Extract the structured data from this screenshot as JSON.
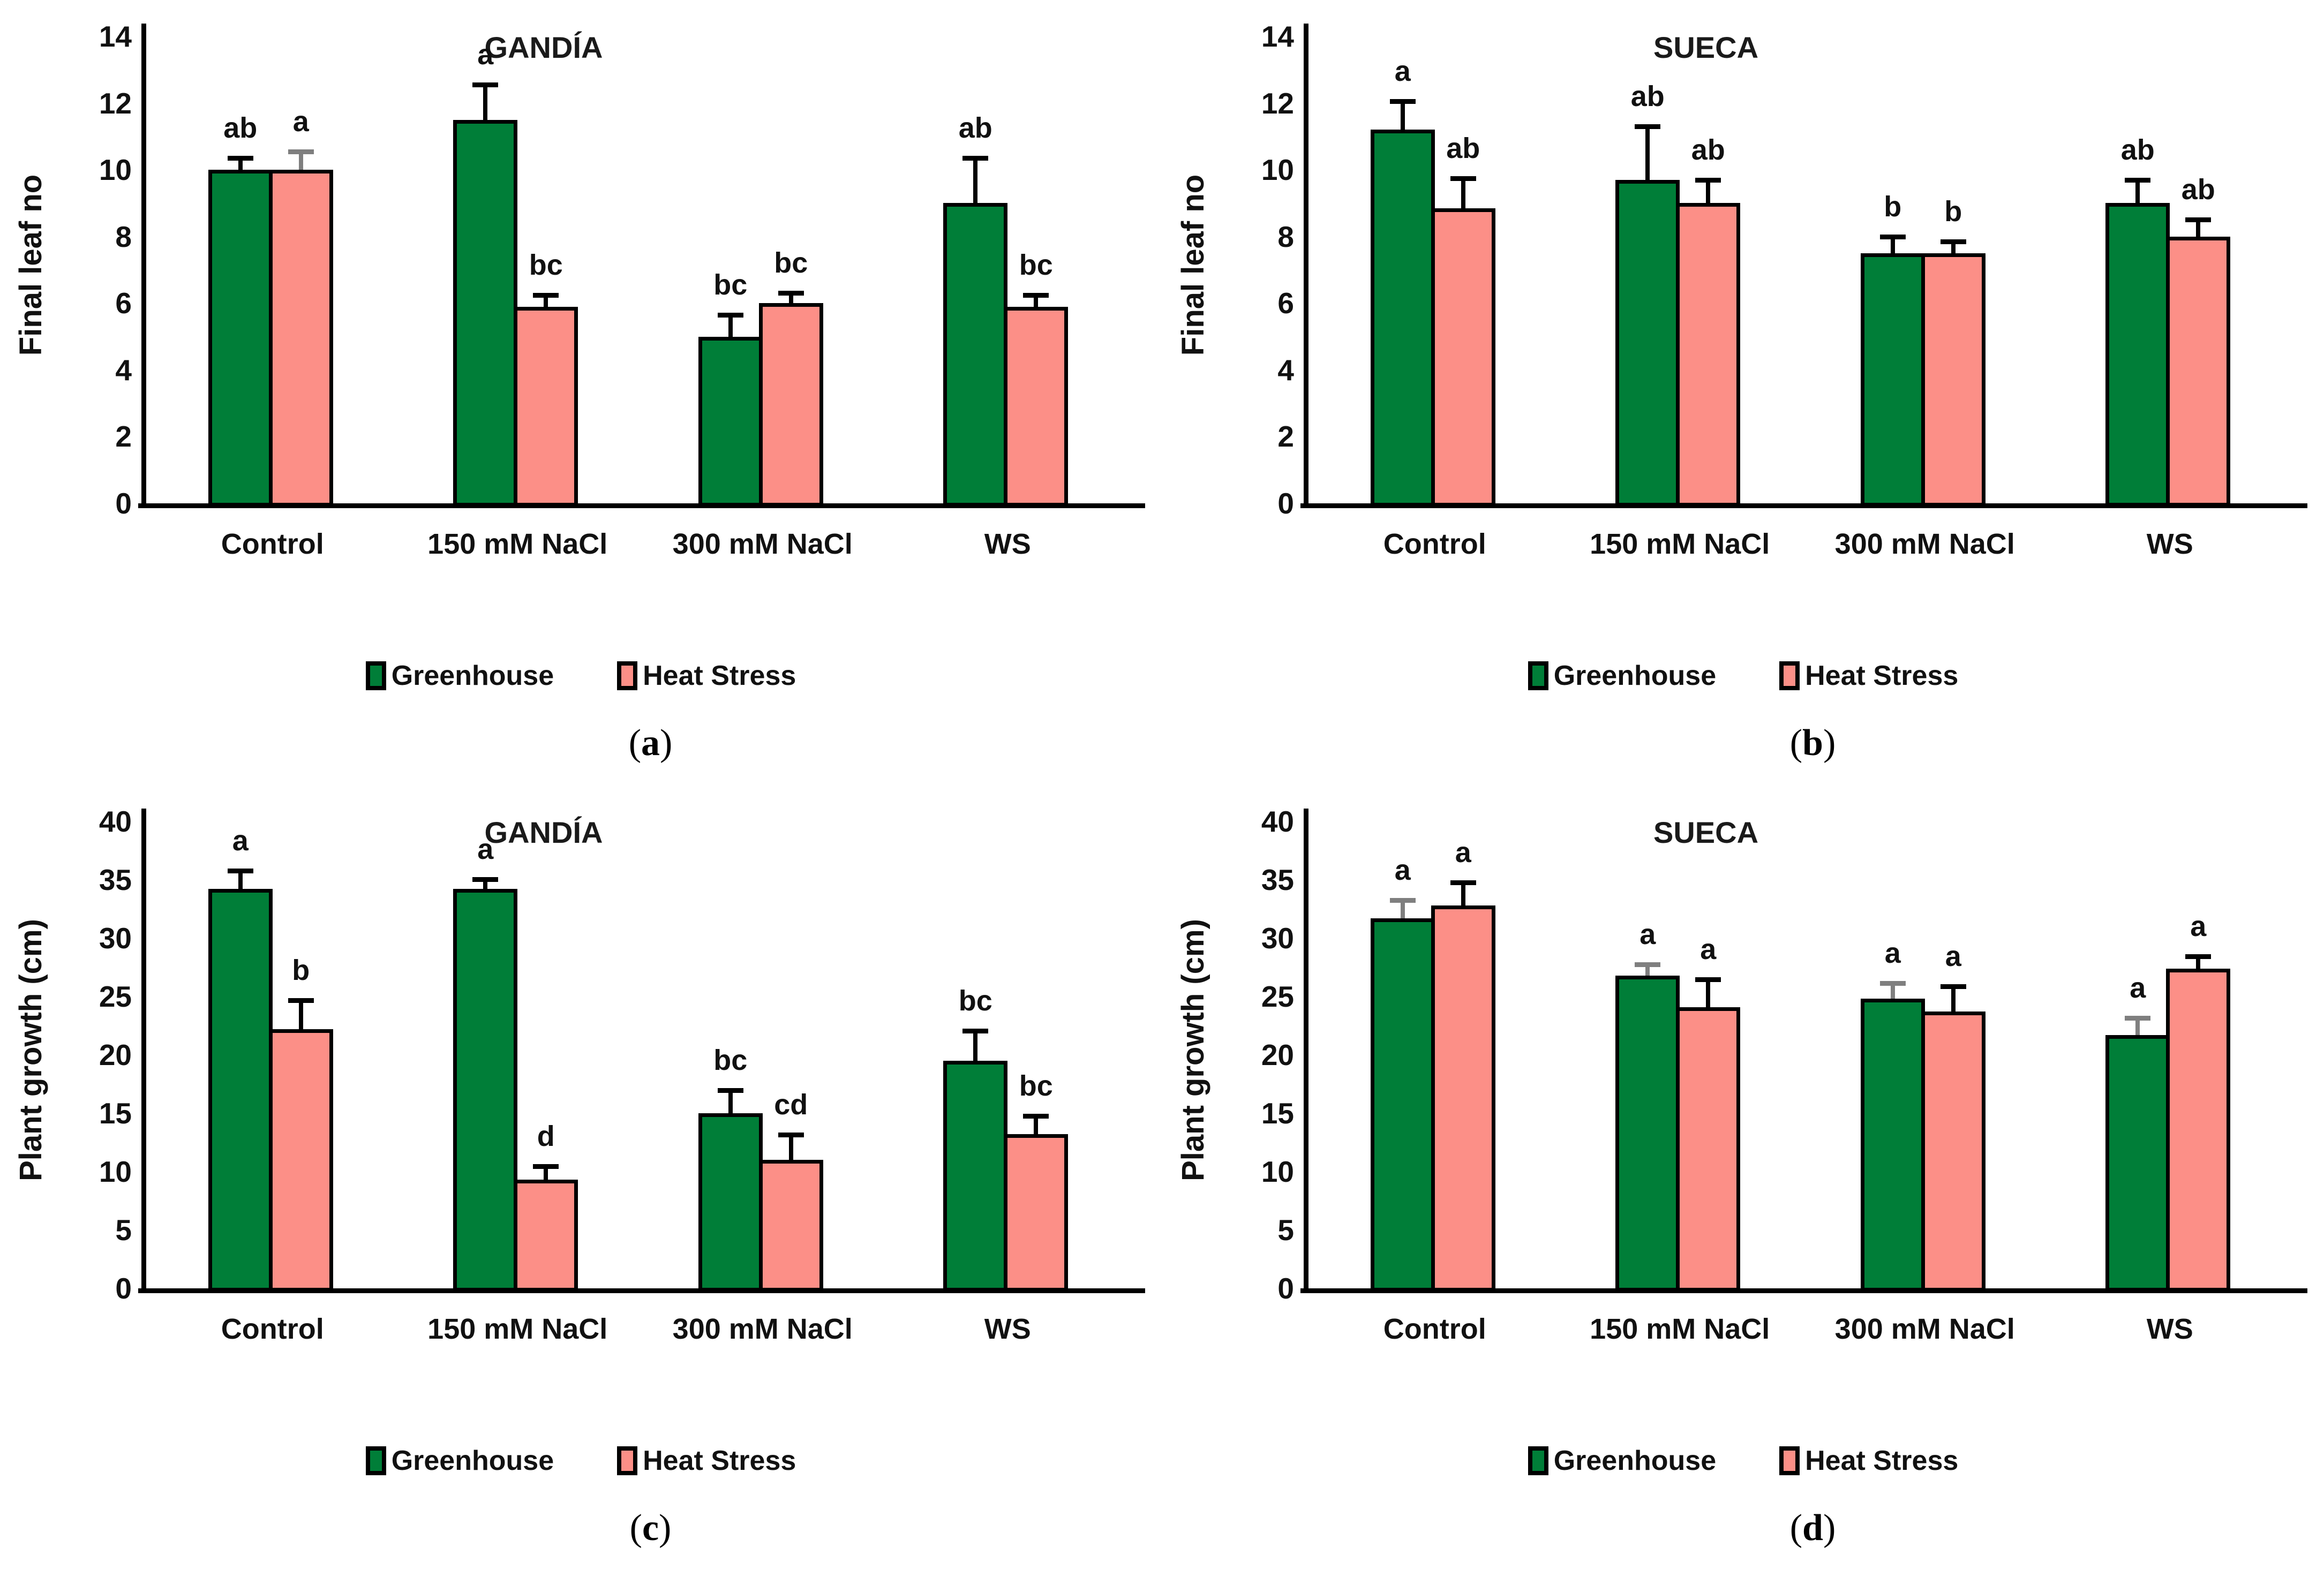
{
  "figure": {
    "background": "#ffffff",
    "text_color": "#111111",
    "axis_color": "#000000",
    "greenhouse_color": "#007E38",
    "heat_stress_color": "#FC8F87",
    "error_gray": "#7F7F7F",
    "legend_labels": [
      "Greenhouse",
      "Heat Stress"
    ]
  },
  "chart_data": [
    {
      "id": "a",
      "type": "bar",
      "title": "GANDÍA",
      "caption": "(a)",
      "caption_letter": "a",
      "ylabel": "Final leaf no",
      "xlabel": "",
      "ylim": [
        0,
        14
      ],
      "ytick_step": 2,
      "grid": false,
      "legend_position": "bottom",
      "categories": [
        "Control",
        "150 mM NaCl",
        "300 mM NaCl",
        "WS"
      ],
      "series": [
        {
          "name": "Greenhouse",
          "color": "#007E38",
          "values": [
            10.0,
            11.5,
            5.0,
            9.0
          ],
          "errors": [
            0.4,
            1.1,
            0.7,
            1.4
          ],
          "error_colors": [
            "black",
            "black",
            "black",
            "black"
          ],
          "letters": [
            "ab",
            "a",
            "bc",
            "ab"
          ]
        },
        {
          "name": "Heat Stress",
          "color": "#FC8F87",
          "values": [
            10.0,
            5.9,
            6.0,
            5.9
          ],
          "errors": [
            0.6,
            0.4,
            0.35,
            0.4
          ],
          "error_colors": [
            "gray",
            "black",
            "black",
            "black"
          ],
          "letters": [
            "a",
            "bc",
            "bc",
            "bc"
          ]
        }
      ]
    },
    {
      "id": "b",
      "type": "bar",
      "title": "SUECA",
      "caption": "(b)",
      "caption_letter": "b",
      "ylabel": "Final leaf no",
      "xlabel": "",
      "ylim": [
        0,
        14
      ],
      "ytick_step": 2,
      "grid": false,
      "legend_position": "bottom",
      "categories": [
        "Control",
        "150 mM NaCl",
        "300 mM NaCl",
        "WS"
      ],
      "series": [
        {
          "name": "Greenhouse",
          "color": "#007E38",
          "values": [
            11.2,
            9.7,
            7.5,
            9.0
          ],
          "errors": [
            0.9,
            1.65,
            0.55,
            0.75
          ],
          "error_colors": [
            "black",
            "black",
            "black",
            "black"
          ],
          "letters": [
            "a",
            "ab",
            "b",
            "ab"
          ]
        },
        {
          "name": "Heat Stress",
          "color": "#FC8F87",
          "values": [
            8.85,
            9.0,
            7.5,
            8.0
          ],
          "errors": [
            0.95,
            0.75,
            0.4,
            0.55
          ],
          "error_colors": [
            "black",
            "black",
            "black",
            "black"
          ],
          "letters": [
            "ab",
            "ab",
            "b",
            "ab"
          ]
        }
      ]
    },
    {
      "id": "c",
      "type": "bar",
      "title": "GANDÍA",
      "caption": "(c)",
      "caption_letter": "c",
      "ylabel": "Plant growth (cm)",
      "xlabel": "",
      "ylim": [
        0,
        40
      ],
      "ytick_step": 5,
      "grid": false,
      "legend_position": "bottom",
      "categories": [
        "Control",
        "150 mM NaCl",
        "300 mM NaCl",
        "WS"
      ],
      "series": [
        {
          "name": "Greenhouse",
          "color": "#007E38",
          "values": [
            34.2,
            34.2,
            15.0,
            19.5
          ],
          "errors": [
            1.7,
            1.0,
            2.1,
            2.7
          ],
          "error_colors": [
            "black",
            "black",
            "black",
            "black"
          ],
          "letters": [
            "a",
            "a",
            "bc",
            "bc"
          ]
        },
        {
          "name": "Heat Stress",
          "color": "#FC8F87",
          "values": [
            22.2,
            9.3,
            11.0,
            13.2
          ],
          "errors": [
            2.6,
            1.3,
            2.3,
            1.7
          ],
          "error_colors": [
            "black",
            "black",
            "black",
            "black"
          ],
          "letters": [
            "b",
            "d",
            "cd",
            "bc"
          ]
        }
      ]
    },
    {
      "id": "d",
      "type": "bar",
      "title": "SUECA",
      "caption": "(d)",
      "caption_letter": "d",
      "ylabel": "Plant growth (cm)",
      "xlabel": "",
      "ylim": [
        0,
        40
      ],
      "ytick_step": 5,
      "grid": false,
      "legend_position": "bottom",
      "categories": [
        "Control",
        "150 mM NaCl",
        "300 mM NaCl",
        "WS"
      ],
      "series": [
        {
          "name": "Greenhouse",
          "color": "#007E38",
          "values": [
            31.7,
            26.8,
            24.8,
            21.7
          ],
          "errors": [
            1.7,
            1.1,
            1.5,
            1.6
          ],
          "error_colors": [
            "gray",
            "gray",
            "gray",
            "gray"
          ],
          "letters": [
            "a",
            "a",
            "a",
            "a"
          ]
        },
        {
          "name": "Heat Stress",
          "color": "#FC8F87",
          "values": [
            32.8,
            24.1,
            23.7,
            27.4
          ],
          "errors": [
            2.1,
            2.5,
            2.3,
            1.2
          ],
          "error_colors": [
            "black",
            "black",
            "black",
            "black"
          ],
          "letters": [
            "a",
            "a",
            "a",
            "a"
          ]
        }
      ]
    }
  ]
}
